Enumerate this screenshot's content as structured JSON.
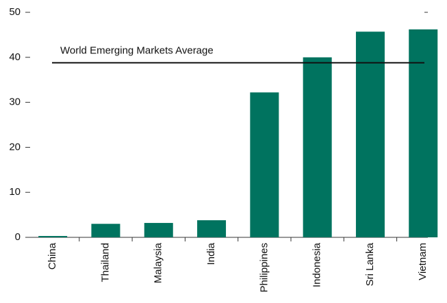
{
  "chart_data": {
    "type": "bar",
    "categories": [
      "China",
      "Thailand",
      "Malaysia",
      "India",
      "Philippines",
      "Indonesia",
      "Sri Lanka",
      "Vietnam"
    ],
    "values": [
      0.3,
      3.0,
      3.2,
      3.8,
      32.2,
      40.0,
      45.7,
      46.2
    ],
    "color": "#00735f",
    "ylim": [
      0,
      50
    ],
    "yticks": [
      0,
      10,
      20,
      30,
      40,
      50
    ],
    "reference_line": {
      "label": "World Emerging Markets Average",
      "value": 38.8
    }
  }
}
